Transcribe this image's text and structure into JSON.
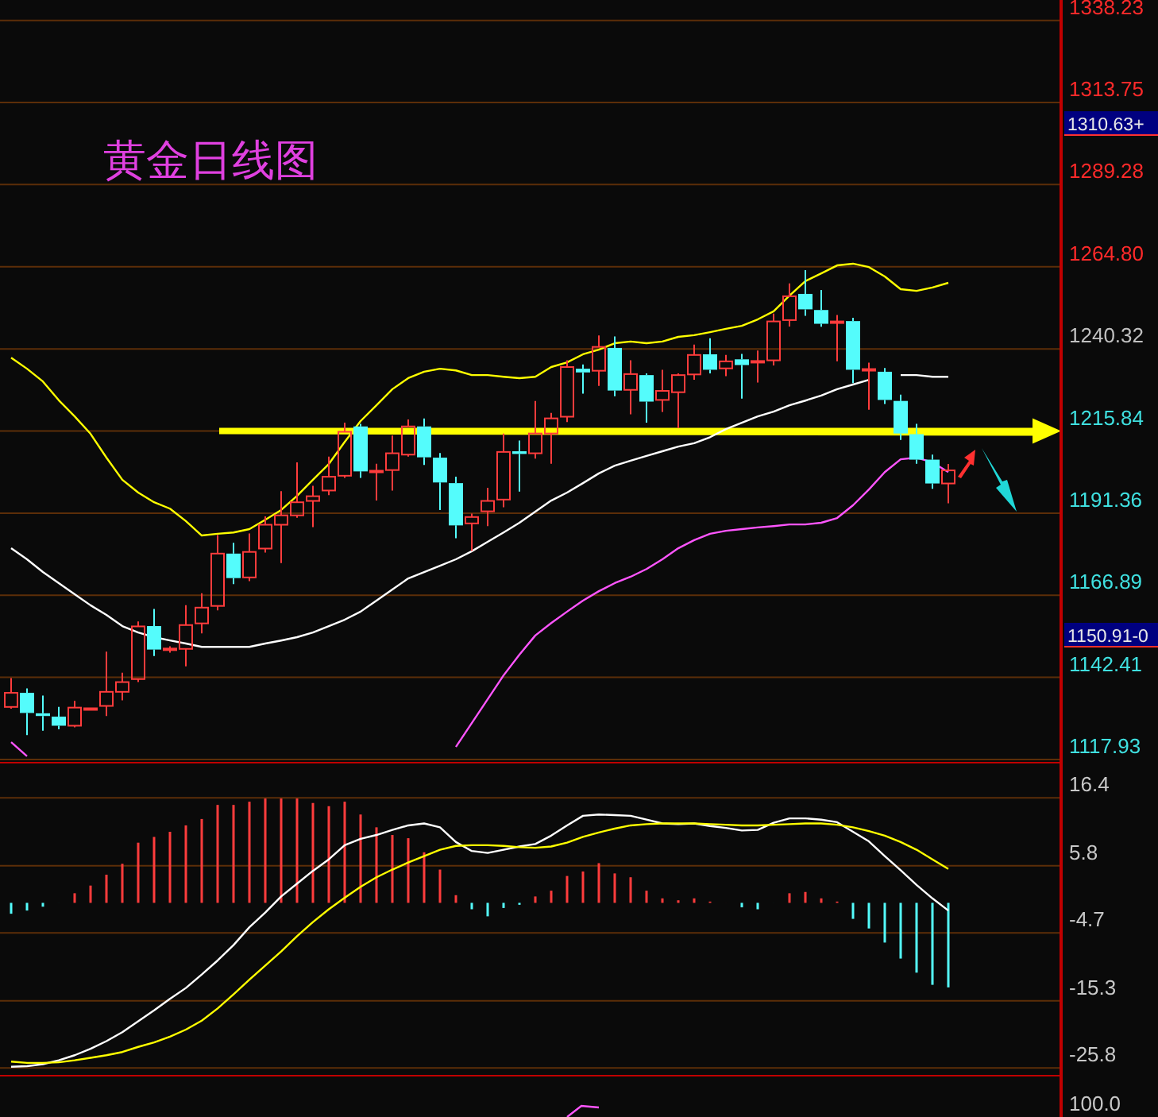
{
  "chart_data": [
    {
      "type": "candlestick",
      "title": "黄金日线图",
      "categories": [
        null,
        null,
        null,
        null,
        null,
        null,
        null,
        null,
        null,
        null,
        null,
        null,
        null,
        null,
        null,
        null,
        null,
        null,
        null,
        null,
        null,
        null,
        null,
        null,
        null,
        null,
        null,
        null,
        null,
        null,
        null,
        null,
        null,
        null,
        null,
        null,
        null,
        null,
        null,
        null,
        null,
        null,
        null,
        null,
        null,
        null,
        null,
        null,
        null,
        null,
        null,
        null,
        null,
        null,
        null,
        null,
        null,
        null,
        null,
        null
      ],
      "ohlc": [
        [
          1133.6,
          1142.2,
          1133.1,
          1137.8
        ],
        [
          1137.8,
          1139.1,
          1125.2,
          1131.8
        ],
        [
          1131.7,
          1137.0,
          1126.5,
          1130.9
        ],
        [
          1130.7,
          1133.6,
          1126.9,
          1128.0
        ],
        [
          1128.0,
          1135.4,
          1127.5,
          1133.4
        ],
        [
          1133.0,
          1133.3,
          1132.9,
          1133.2
        ],
        [
          1133.9,
          1150.1,
          1130.9,
          1138.1
        ],
        [
          1138.1,
          1143.8,
          1135.6,
          1141.0
        ],
        [
          1141.9,
          1159.1,
          1141.0,
          1157.6
        ],
        [
          1157.7,
          1162.8,
          1148.8,
          1150.7
        ],
        [
          1150.7,
          1151.7,
          1149.8,
          1151.0
        ],
        [
          1150.9,
          1163.9,
          1145.7,
          1158.0
        ],
        [
          1158.5,
          1167.5,
          1155.5,
          1163.2
        ],
        [
          1163.7,
          1184.8,
          1162.4,
          1179.3
        ],
        [
          1179.3,
          1182.5,
          1170.2,
          1172.0
        ],
        [
          1172.2,
          1185.3,
          1171.1,
          1179.8
        ],
        [
          1180.8,
          1190.4,
          1179.6,
          1187.9
        ],
        [
          1187.9,
          1197.9,
          1176.5,
          1190.7
        ],
        [
          1190.7,
          1206.5,
          1190.0,
          1194.6
        ],
        [
          1195.0,
          1199.5,
          1187.2,
          1196.4
        ],
        [
          1198.1,
          1208.2,
          1196.7,
          1202.2
        ],
        [
          1202.5,
          1218.3,
          1201.9,
          1215.6
        ],
        [
          1217.2,
          1218.0,
          1201.9,
          1203.8
        ],
        [
          1203.7,
          1206.1,
          1195.1,
          1204.0
        ],
        [
          1204.2,
          1214.5,
          1198.1,
          1209.2
        ],
        [
          1208.8,
          1219.3,
          1208.2,
          1217.2
        ],
        [
          1217.2,
          1219.6,
          1205.7,
          1208.0
        ],
        [
          1207.9,
          1209.3,
          1192.3,
          1200.5
        ],
        [
          1200.3,
          1202.2,
          1183.9,
          1187.7
        ],
        [
          1188.3,
          1191.2,
          1180.1,
          1190.2
        ],
        [
          1191.9,
          1198.9,
          1187.5,
          1195.0
        ],
        [
          1195.4,
          1215.1,
          1193.1,
          1209.6
        ],
        [
          1209.8,
          1213.0,
          1197.8,
          1209.0
        ],
        [
          1209.2,
          1224.8,
          1207.6,
          1215.1
        ],
        [
          1215.1,
          1221.2,
          1206.1,
          1219.6
        ],
        [
          1220.1,
          1236.9,
          1218.5,
          1234.9
        ],
        [
          1234.4,
          1235.7,
          1227.0,
          1233.3
        ],
        [
          1233.8,
          1244.3,
          1229.3,
          1240.9
        ],
        [
          1240.6,
          1244.0,
          1226.2,
          1227.9
        ],
        [
          1228.1,
          1236.9,
          1220.8,
          1232.8
        ],
        [
          1232.5,
          1233.0,
          1218.3,
          1224.6
        ],
        [
          1225.1,
          1234.1,
          1221.5,
          1227.8
        ],
        [
          1227.4,
          1233.0,
          1216.7,
          1232.5
        ],
        [
          1232.7,
          1241.6,
          1231.1,
          1238.5
        ],
        [
          1238.7,
          1243.5,
          1233.0,
          1234.1
        ],
        [
          1234.5,
          1238.5,
          1232.2,
          1236.6
        ],
        [
          1237.2,
          1238.8,
          1225.5,
          1235.5
        ],
        [
          1236.4,
          1239.8,
          1230.3,
          1236.7
        ],
        [
          1236.9,
          1250.8,
          1235.4,
          1248.5
        ],
        [
          1248.9,
          1259.8,
          1247.0,
          1256.0
        ],
        [
          1256.7,
          1263.8,
          1250.2,
          1252.1
        ],
        [
          1251.9,
          1257.9,
          1246.9,
          1247.8
        ],
        [
          1248.2,
          1250.4,
          1236.6,
          1248.5
        ],
        [
          1248.6,
          1249.6,
          1230.1,
          1234.1
        ],
        [
          1234.0,
          1236.2,
          1222.2,
          1234.3
        ],
        [
          1233.5,
          1234.6,
          1223.9,
          1225.1
        ],
        [
          1224.8,
          1226.7,
          1213.2,
          1215.1
        ],
        [
          1214.9,
          1218.0,
          1206.1,
          1207.3
        ],
        [
          1207.3,
          1208.8,
          1198.6,
          1200.2
        ],
        [
          1200.2,
          1206.0,
          1194.3,
          1204.1
        ]
      ],
      "colors": [
        "#ff3c3c",
        "#54fcfc",
        "#54fcfc",
        "#54fcfc",
        "#ff3c3c",
        "#ff3c3c",
        "#ff3c3c",
        "#ff3c3c",
        "#ff3c3c",
        "#54fcfc",
        "#ff3c3c",
        "#ff3c3c",
        "#ff3c3c",
        "#ff3c3c",
        "#54fcfc",
        "#ff3c3c",
        "#ff3c3c",
        "#ff3c3c",
        "#ff3c3c",
        "#ff3c3c",
        "#ff3c3c",
        "#ff3c3c",
        "#54fcfc",
        "#ff3c3c",
        "#ff3c3c",
        "#ff3c3c",
        "#54fcfc",
        "#54fcfc",
        "#54fcfc",
        "#ff3c3c",
        "#ff3c3c",
        "#ff3c3c",
        "#54fcfc",
        "#ff3c3c",
        "#ff3c3c",
        "#ff3c3c",
        "#54fcfc",
        "#ff3c3c",
        "#54fcfc",
        "#ff3c3c",
        "#54fcfc",
        "#ff3c3c",
        "#ff3c3c",
        "#ff3c3c",
        "#54fcfc",
        "#ff3c3c",
        "#54fcfc",
        "#ff3c3c",
        "#ff3c3c",
        "#ff3c3c",
        "#54fcfc",
        "#54fcfc",
        "#ff3c3c",
        "#54fcfc",
        "#ff3c3c",
        "#54fcfc",
        "#54fcfc",
        "#54fcfc",
        "#54fcfc",
        "#ff3c3c"
      ],
      "series": [
        {
          "type": "line",
          "color": "#ffff00",
          "values": [
            1237.7,
            1234.4,
            1230.6,
            1225.0,
            1220.2,
            1215.0,
            1207.9,
            1201.3,
            1197.5,
            1194.6,
            1192.7,
            1189.0,
            1184.7,
            1185.2,
            1185.6,
            1186.6,
            1189.4,
            1192.3,
            1196.5,
            1201.3,
            1206.0,
            1212.6,
            1218.8,
            1223.5,
            1228.3,
            1231.6,
            1233.5,
            1234.4,
            1233.9,
            1232.5,
            1232.5,
            1232.0,
            1231.6,
            1232.0,
            1234.9,
            1236.3,
            1238.7,
            1240.1,
            1242.0,
            1242.5,
            1242.0,
            1242.5,
            1243.9,
            1244.4,
            1245.3,
            1246.3,
            1247.2,
            1249.1,
            1251.5,
            1256.2,
            1260.5,
            1262.8,
            1265.2,
            1265.7,
            1264.7,
            1261.9,
            1258.1,
            1257.6,
            1258.6,
            1260.0
          ]
        },
        {
          "type": "line",
          "color": "#ffffff",
          "values": [
            1180.9,
            1177.6,
            1173.8,
            1170.5,
            1167.2,
            1163.9,
            1161.0,
            1157.7,
            1155.8,
            1154.4,
            1153.4,
            1152.5,
            1151.5,
            1151.5,
            1151.5,
            1151.5,
            1152.5,
            1153.4,
            1154.4,
            1155.8,
            1157.7,
            1159.6,
            1162.0,
            1165.3,
            1168.6,
            1171.9,
            1173.8,
            1175.7,
            1177.6,
            1180.0,
            1182.8,
            1185.6,
            1188.5,
            1191.8,
            1195.1,
            1197.5,
            1200.3,
            1203.2,
            1205.5,
            1207.0,
            1208.4,
            1209.8,
            1211.2,
            1212.2,
            1214.0,
            1216.4,
            1218.3,
            1220.2,
            1221.6,
            1223.5,
            1224.9,
            1226.4,
            1228.3,
            1229.7,
            1231.1,
            null,
            1232.5,
            1232.5,
            1232.0,
            1232.0
          ]
        },
        {
          "type": "line",
          "color": "#ff55ff",
          "values": [
            1123.1,
            1118.9,
            null,
            null,
            null,
            null,
            null,
            null,
            null,
            null,
            null,
            null,
            null,
            null,
            null,
            null,
            null,
            null,
            null,
            null,
            null,
            null,
            null,
            null,
            null,
            null,
            null,
            null,
            1121.7,
            1128.8,
            1135.9,
            1143.0,
            1149.2,
            1154.9,
            1158.6,
            1162.0,
            1165.3,
            1168.1,
            1170.5,
            1172.4,
            1174.7,
            1177.6,
            1180.9,
            1183.3,
            1185.2,
            1186.1,
            1186.6,
            1187.1,
            1187.5,
            1188.0,
            1188.0,
            1188.5,
            1189.9,
            1193.7,
            1198.4,
            1203.6,
            1207.4,
            1207.9,
            1206.5,
            1203.6
          ]
        }
      ],
      "ylim": [
        1117.93,
        1344.3
      ],
      "yticks": [
        {
          "value": 1117.93,
          "label": "1117.93"
        },
        {
          "value": 1142.41,
          "label": "1142.41"
        },
        {
          "value": 1166.89,
          "label": "1166.89"
        },
        {
          "value": 1191.36,
          "label": "1191.36"
        },
        {
          "value": 1215.84,
          "label": "1215.84"
        },
        {
          "value": 1240.32,
          "label": "1240.32"
        },
        {
          "value": 1264.8,
          "label": "1264.80"
        },
        {
          "value": 1289.28,
          "label": "1289.28"
        },
        {
          "value": 1313.75,
          "label": "1313.75"
        },
        {
          "value": 1338.23,
          "label": "1338.23"
        }
      ],
      "grid": "y",
      "annotations": [
        "1310.63+",
        "1150.91-0"
      ]
    },
    {
      "type": "bar",
      "categories": [
        null,
        null,
        null,
        null,
        null,
        null,
        null,
        null,
        null,
        null,
        null,
        null,
        null,
        null,
        null,
        null,
        null,
        null,
        null,
        null,
        null,
        null,
        null,
        null,
        null,
        null,
        null,
        null,
        null,
        null,
        null,
        null,
        null,
        null,
        null,
        null,
        null,
        null,
        null,
        null,
        null,
        null,
        null,
        null,
        null,
        null,
        null,
        null,
        null,
        null,
        null,
        null,
        null,
        null,
        null,
        null,
        null,
        null,
        null,
        null
      ],
      "series": [
        {
          "type": "bar",
          "colors": [
            "#54fcfc",
            "#54fcfc",
            "#54fcfc",
            "#54fcfc",
            "#ff3c3c",
            "#ff3c3c",
            "#ff3c3c",
            "#ff3c3c",
            "#ff3c3c",
            "#ff3c3c",
            "#ff3c3c",
            "#ff3c3c",
            "#ff3c3c",
            "#ff3c3c",
            "#ff3c3c",
            "#ff3c3c",
            "#ff3c3c",
            "#ff3c3c",
            "#ff3c3c",
            "#ff3c3c",
            "#ff3c3c",
            "#ff3c3c",
            "#ff3c3c",
            "#ff3c3c",
            "#ff3c3c",
            "#ff3c3c",
            "#ff3c3c",
            "#ff3c3c",
            "#ff3c3c",
            "#54fcfc",
            "#54fcfc",
            "#54fcfc",
            "#54fcfc",
            "#ff3c3c",
            "#ff3c3c",
            "#ff3c3c",
            "#ff3c3c",
            "#ff3c3c",
            "#ff3c3c",
            "#ff3c3c",
            "#ff3c3c",
            "#ff3c3c",
            "#ff3c3c",
            "#ff3c3c",
            "#ff3c3c",
            "#ff3c3c",
            "#54fcfc",
            "#54fcfc",
            "#54fcfc",
            "#ff3c3c",
            "#ff3c3c",
            "#ff3c3c",
            "#ff3c3c",
            "#54fcfc",
            "#54fcfc",
            "#54fcfc",
            "#54fcfc",
            "#54fcfc",
            "#54fcfc",
            "#54fcfc"
          ],
          "values": [
            -1.7,
            -1.2,
            -0.6,
            0,
            1.5,
            2.7,
            4.4,
            6.1,
            9.4,
            10.3,
            11.1,
            12.1,
            13.1,
            15.3,
            15.3,
            15.8,
            16.3,
            16.3,
            16.3,
            15.6,
            15.1,
            15.8,
            13.8,
            11.8,
            10.6,
            10.1,
            7.9,
            5.2,
            1.2,
            -1.0,
            -2.1,
            -0.8,
            -0.3,
            1.0,
            1.9,
            4.2,
            4.9,
            6.2,
            4.6,
            4.0,
            1.9,
            0.7,
            0.4,
            0.7,
            0.2,
            0,
            -0.7,
            -1.0,
            0,
            1.5,
            1.7,
            0.7,
            0.2,
            -2.5,
            -4.0,
            -6.2,
            -8.7,
            -10.9,
            -12.8,
            -13.2
          ]
        },
        {
          "type": "line",
          "color": "#ffffff",
          "values": [
            -25.6,
            -25.5,
            -25.2,
            -24.6,
            -23.8,
            -22.8,
            -21.6,
            -20.2,
            -18.5,
            -16.8,
            -15.0,
            -13.3,
            -11.2,
            -9.0,
            -6.6,
            -3.8,
            -1.5,
            1.0,
            3.0,
            5.0,
            6.8,
            9.0,
            10.0,
            10.6,
            11.4,
            12.1,
            12.4,
            11.8,
            9.5,
            8.1,
            7.8,
            8.3,
            8.8,
            9.2,
            10.5,
            12.1,
            13.6,
            13.8,
            13.7,
            13.6,
            13.0,
            12.4,
            12.3,
            12.4,
            12.0,
            11.7,
            11.3,
            11.4,
            12.5,
            13.2,
            13.2,
            13.0,
            12.6,
            11.1,
            9.6,
            7.3,
            5.1,
            2.8,
            0.7,
            -1.2
          ]
        },
        {
          "type": "line",
          "color": "#ffff00",
          "values": [
            -24.8,
            -25.0,
            -25.0,
            -24.9,
            -24.6,
            -24.2,
            -23.8,
            -23.3,
            -22.5,
            -21.8,
            -20.9,
            -19.8,
            -18.4,
            -16.5,
            -14.3,
            -12.0,
            -9.8,
            -7.6,
            -5.2,
            -3.0,
            -1.0,
            0.8,
            2.5,
            4.0,
            5.2,
            6.3,
            7.3,
            8.3,
            8.9,
            9.0,
            9.0,
            8.9,
            8.7,
            8.6,
            8.8,
            9.4,
            10.3,
            11.0,
            11.6,
            12.1,
            12.3,
            12.4,
            12.4,
            12.4,
            12.3,
            12.2,
            12.1,
            12.1,
            12.2,
            12.3,
            12.4,
            12.4,
            12.2,
            11.8,
            11.2,
            10.5,
            9.5,
            8.3,
            6.8,
            5.3
          ]
        }
      ],
      "ylim": [
        -26.5,
        21.4
      ],
      "yticks": [
        16.4,
        5.8,
        -4.7,
        -15.3,
        -25.8
      ],
      "grid": "y"
    },
    {
      "type": "other",
      "annotations": [
        "100.0"
      ]
    }
  ]
}
